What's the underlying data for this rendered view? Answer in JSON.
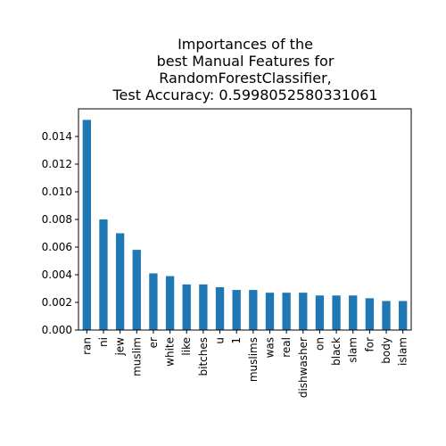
{
  "chart_data": {
    "type": "bar",
    "title_lines": [
      "Importances of the",
      "best Manual Features for",
      "RandomForestClassifier,",
      "Test Accuracy: 0.5998052580331061"
    ],
    "categories": [
      "ran",
      "ni",
      "jew",
      "muslim",
      "er",
      "white",
      "like",
      "bitches",
      "u",
      "1",
      "muslims",
      "was",
      "real",
      "dishwasher",
      "on",
      "black",
      "slam",
      "for",
      "body",
      "islam"
    ],
    "values": [
      0.0152,
      0.008,
      0.007,
      0.0058,
      0.0041,
      0.0039,
      0.0033,
      0.0033,
      0.0031,
      0.0029,
      0.0029,
      0.0027,
      0.0027,
      0.0027,
      0.0025,
      0.0025,
      0.0025,
      0.0023,
      0.0021,
      0.0021
    ],
    "ylim": [
      0,
      0.016
    ],
    "yticks": [
      "0.000",
      "0.002",
      "0.004",
      "0.006",
      "0.008",
      "0.010",
      "0.012",
      "0.014"
    ],
    "bar_color": "#1f77b4",
    "xlabel": "",
    "ylabel": ""
  }
}
